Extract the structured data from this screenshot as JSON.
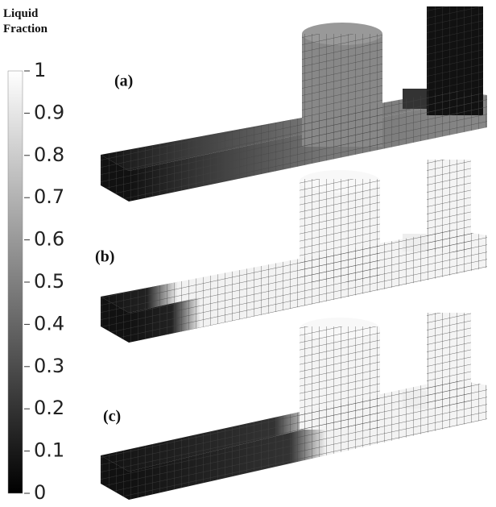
{
  "colorbar": {
    "title": "Liquid Fraction",
    "lim": [
      0,
      1
    ],
    "ticks": [
      0,
      0.1,
      0.2,
      0.3,
      0.4,
      0.5,
      0.6,
      0.7,
      0.8,
      0.9,
      1
    ]
  },
  "panels": [
    {
      "label": "(a)"
    },
    {
      "label": "(b)"
    },
    {
      "label": "(c)"
    }
  ]
}
